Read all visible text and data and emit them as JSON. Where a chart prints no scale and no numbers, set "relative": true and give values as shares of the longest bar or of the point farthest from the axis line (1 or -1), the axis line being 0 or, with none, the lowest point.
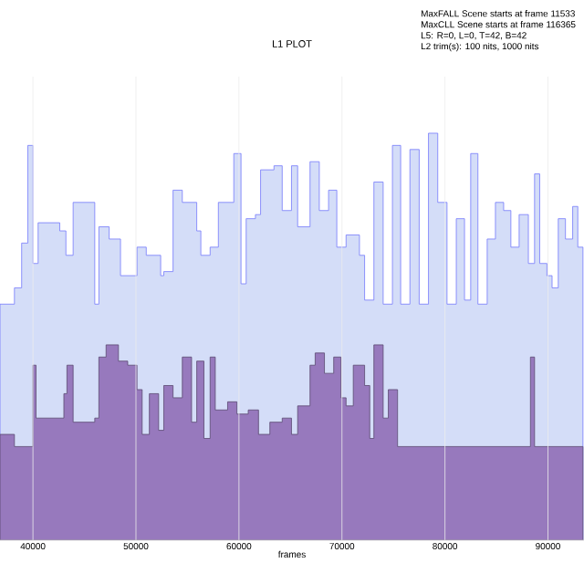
{
  "chart_data": {
    "type": "area",
    "title": "L1 PLOT",
    "xlabel": "frames",
    "annotations": [
      "MaxFALL Scene starts at frame 11533",
      "MaxCLL Scene starts at frame 116365",
      "L5: R=0, L=0, T=42, B=42",
      "L2 trim(s): 100 nits, 1000 nits"
    ],
    "relative": true,
    "xlim": [
      36800,
      93500
    ],
    "xticks": [
      40000,
      50000,
      60000,
      70000,
      80000,
      90000
    ],
    "grid": "x",
    "marker": "none",
    "series": [
      {
        "color": "#d4ddf8",
        "x": [
          36800,
          38200,
          38900,
          39500,
          40000,
          40500,
          42600,
          43200,
          43900,
          45700,
          46000,
          46400,
          47400,
          48500,
          50100,
          51000,
          52400,
          52700,
          53600,
          54500,
          55900,
          56300,
          57200,
          58000,
          59500,
          60200,
          60700,
          61600,
          62100,
          63400,
          64200,
          65100,
          65700,
          66900,
          67800,
          68700,
          69500,
          70400,
          71700,
          72200,
          73100,
          74000,
          74900,
          75700,
          76600,
          77500,
          78400,
          79300,
          80200,
          81100,
          81900,
          82500,
          83200,
          84100,
          84900,
          85700,
          86400,
          87200,
          88100,
          88700,
          89200,
          89900,
          90400,
          91000,
          91700,
          92400,
          92900,
          93400
        ],
        "values": [
          0.58,
          0.62,
          0.73,
          0.97,
          0.68,
          0.78,
          0.76,
          0.7,
          0.83,
          0.83,
          0.58,
          0.77,
          0.74,
          0.65,
          0.72,
          0.7,
          0.65,
          0.66,
          0.86,
          0.83,
          0.76,
          0.7,
          0.72,
          0.83,
          0.95,
          0.63,
          0.79,
          0.8,
          0.91,
          0.92,
          0.81,
          0.92,
          0.77,
          0.93,
          0.81,
          0.86,
          0.72,
          0.75,
          0.7,
          0.59,
          0.88,
          0.58,
          0.97,
          0.58,
          0.96,
          0.58,
          1,
          0.83,
          0.58,
          0.79,
          0.59,
          0.95,
          0.58,
          0.74,
          0.83,
          0.81,
          0.72,
          0.8,
          0.68,
          0.9,
          0.68,
          0.65,
          0.62,
          0.79,
          0.74,
          0.82,
          0.72,
          0.72
        ]
      },
      {
        "color": "#9779bd",
        "x": [
          36800,
          38200,
          40000,
          40300,
          42600,
          43000,
          43300,
          43900,
          44800,
          46000,
          46400,
          47100,
          47800,
          48300,
          49200,
          50100,
          50600,
          51300,
          52200,
          52700,
          53600,
          54500,
          55400,
          55900,
          56600,
          57200,
          57700,
          58900,
          59800,
          60900,
          61900,
          63000,
          64200,
          65100,
          65700,
          66900,
          67400,
          68300,
          69200,
          69900,
          70400,
          71100,
          72200,
          72700,
          73100,
          74000,
          74500,
          75400,
          81100,
          88100,
          88300,
          88700,
          93400
        ],
        "values": [
          0.26,
          0.23,
          0.43,
          0.3,
          0.3,
          0.36,
          0.43,
          0.29,
          0.29,
          0.3,
          0.45,
          0.48,
          0.48,
          0.44,
          0.43,
          0.37,
          0.26,
          0.36,
          0.27,
          0.38,
          0.35,
          0.45,
          0.29,
          0.44,
          0.25,
          0.45,
          0.32,
          0.34,
          0.31,
          0.32,
          0.26,
          0.29,
          0.3,
          0.26,
          0.33,
          0.43,
          0.46,
          0.41,
          0.45,
          0.35,
          0.33,
          0.43,
          0.38,
          0.25,
          0.48,
          0.3,
          0.37,
          0.23,
          0.23,
          0.23,
          0.45,
          0.23,
          0.23
        ]
      }
    ]
  }
}
